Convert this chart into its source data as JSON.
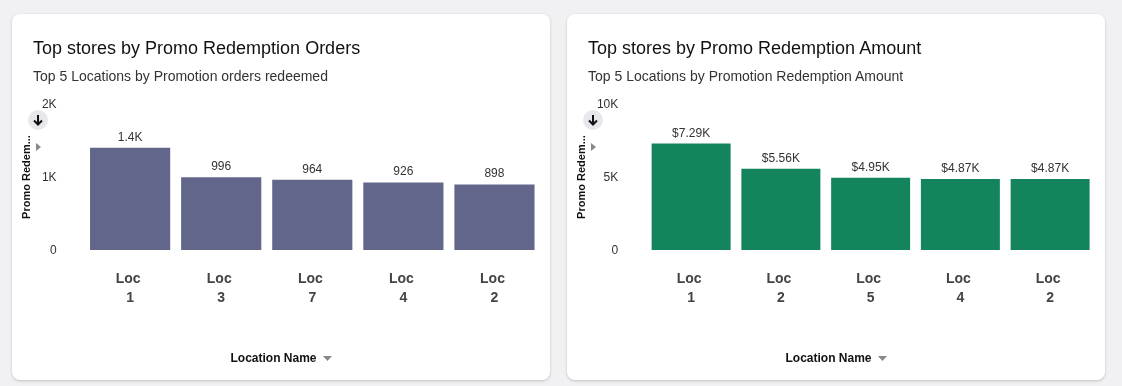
{
  "chart_data": [
    {
      "type": "bar",
      "title": "Top stores by Promo Redemption Orders",
      "subtitle": "Top 5 Locations by Promotion orders redeemed",
      "xlabel": "Location Name",
      "ylabel": "Promo Redem...",
      "categories": [
        "Loc 1",
        "Loc 3",
        "Loc 7",
        "Loc 4",
        "Loc 2"
      ],
      "values": [
        1400,
        996,
        964,
        926,
        898
      ],
      "value_labels": [
        "1.4K",
        "996",
        "964",
        "926",
        "898"
      ],
      "color": "#62668a",
      "ylim": [
        0,
        2000
      ],
      "yticks": [
        0,
        {
          "value": 1000,
          "label": "1K"
        },
        {
          "value": 2000,
          "label": "2K"
        }
      ],
      "grid": false
    },
    {
      "type": "bar",
      "title": "Top stores by Promo Redemption Amount",
      "subtitle": "Top 5 Locations by Promotion Redemption Amount",
      "xlabel": "Location Name",
      "ylabel": "Promo Redem...",
      "categories": [
        "Loc 1",
        "Loc 2",
        "Loc 5",
        "Loc 4",
        "Loc 2"
      ],
      "values": [
        7290,
        5560,
        4950,
        4870,
        4870
      ],
      "value_labels": [
        "$7.29K",
        "$5.56K",
        "$4.95K",
        "$4.87K",
        "$4.87K"
      ],
      "color": "#13845c",
      "ylim": [
        0,
        10000
      ],
      "yticks": [
        0,
        {
          "value": 5000,
          "label": "5K"
        },
        {
          "value": 10000,
          "label": "10K"
        }
      ],
      "grid": false
    }
  ]
}
